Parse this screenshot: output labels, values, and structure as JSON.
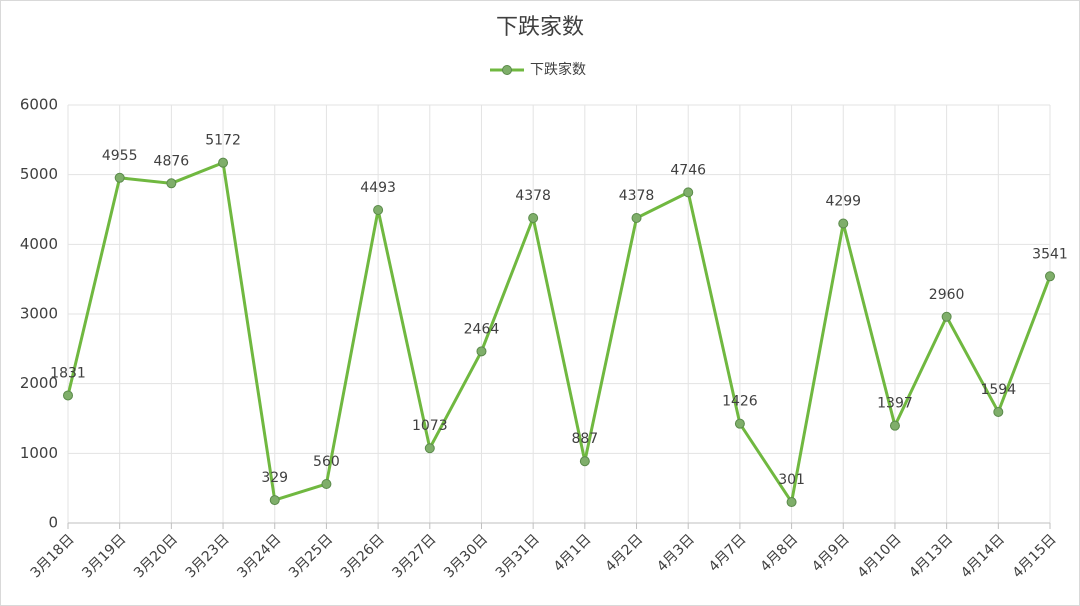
{
  "chart_data": {
    "type": "line",
    "title": "下跌家数",
    "categories": [
      "3月18日",
      "3月19日",
      "3月20日",
      "3月23日",
      "3月24日",
      "3月25日",
      "3月26日",
      "3月27日",
      "3月30日",
      "3月31日",
      "4月1日",
      "4月2日",
      "4月3日",
      "4月7日",
      "4月8日",
      "4月9日",
      "4月10日",
      "4月13日",
      "4月14日",
      "4月15日"
    ],
    "series": [
      {
        "name": "下跌家数",
        "color": "#70b840",
        "values": [
          1831,
          4955,
          4876,
          5172,
          329,
          560,
          4493,
          1073,
          2464,
          4378,
          887,
          4378,
          4746,
          1426,
          301,
          4299,
          1397,
          2960,
          1594,
          3541
        ]
      }
    ],
    "ylim": [
      0,
      6000
    ],
    "yticks": [
      0,
      1000,
      2000,
      3000,
      4000,
      5000,
      6000
    ],
    "grid": true,
    "legend": "top"
  }
}
